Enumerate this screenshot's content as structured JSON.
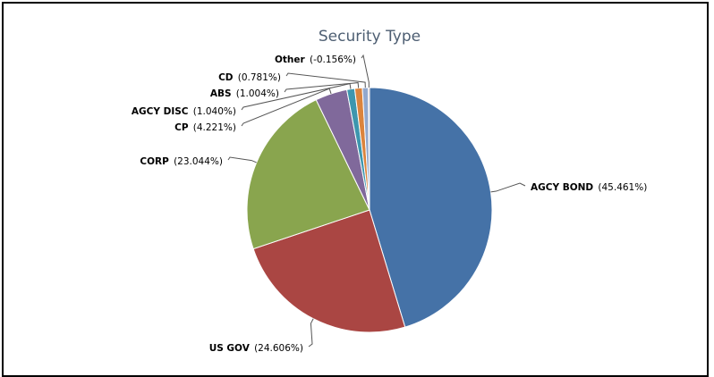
{
  "chart_data": {
    "type": "pie",
    "title": "Security Type",
    "slices": [
      {
        "label": "AGCY BOND",
        "value": 45.461,
        "display": "(45.461%)",
        "color": "#4572a7"
      },
      {
        "label": "US GOV",
        "value": 24.606,
        "display": "(24.606%)",
        "color": "#aa4643"
      },
      {
        "label": "CORP",
        "value": 23.044,
        "display": "(23.044%)",
        "color": "#89a54e"
      },
      {
        "label": "CP",
        "value": 4.221,
        "display": "(4.221%)",
        "color": "#80699b"
      },
      {
        "label": "AGCY DISC",
        "value": 1.04,
        "display": "(1.040%)",
        "color": "#3d96ae"
      },
      {
        "label": "ABS",
        "value": 1.004,
        "display": "(1.004%)",
        "color": "#db843d"
      },
      {
        "label": "CD",
        "value": 0.781,
        "display": "(0.781%)",
        "color": "#92a8cd"
      },
      {
        "label": "Other",
        "value": -0.156,
        "display": "(-0.156%)",
        "color": "#a47d7c"
      }
    ],
    "legend": "none"
  }
}
